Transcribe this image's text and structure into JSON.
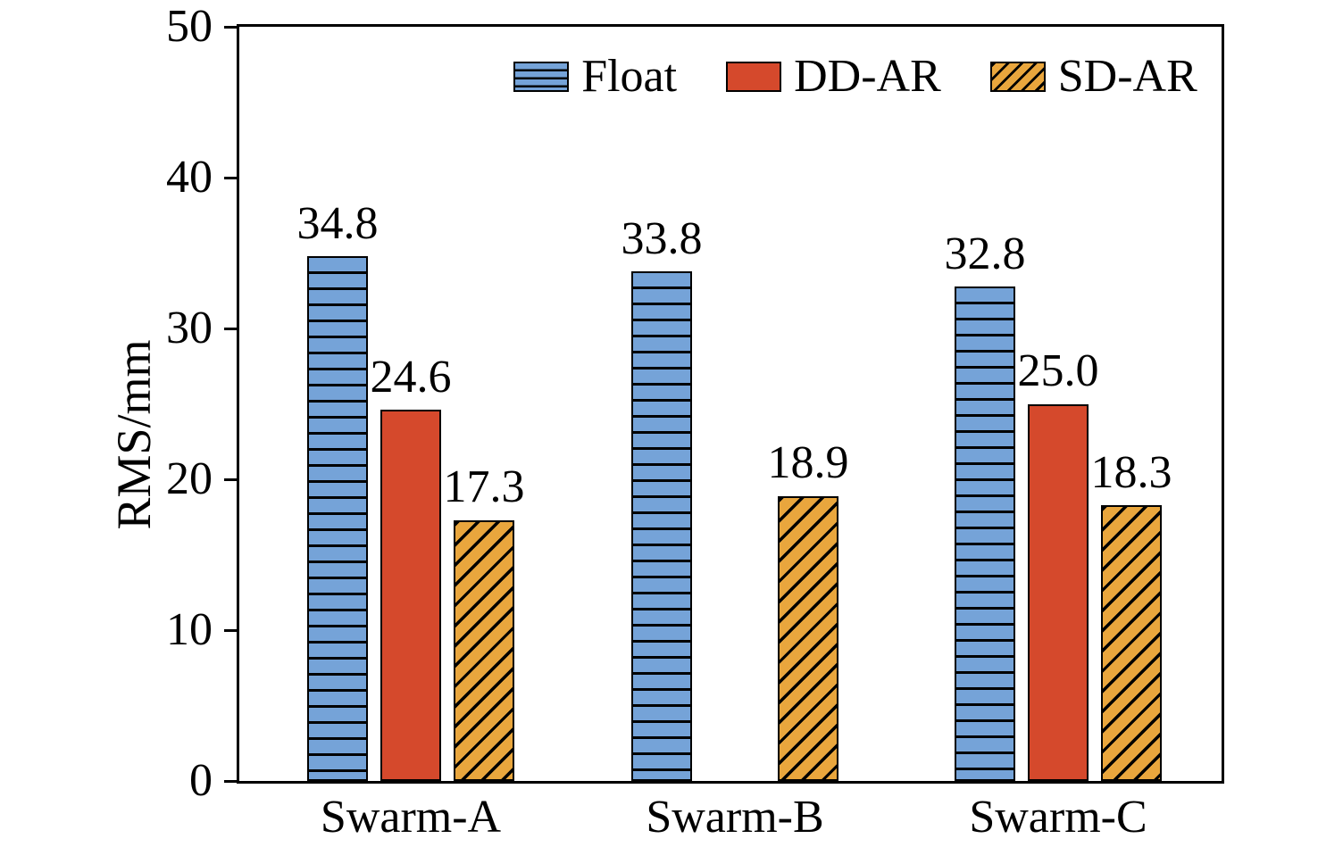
{
  "figure": {
    "background": "#ffffff"
  },
  "chart_data": {
    "type": "bar",
    "title": "",
    "ylabel": "RMS/mm",
    "xlabel": "",
    "ylim": [
      0,
      50
    ],
    "yticks": [
      0,
      10,
      20,
      30,
      40,
      50
    ],
    "categories": [
      "Swarm-A",
      "Swarm-B",
      "Swarm-C"
    ],
    "series": [
      {
        "name": "Float",
        "color": "#75A3D8",
        "hatch": "horizontal",
        "values": [
          34.8,
          33.8,
          32.8
        ]
      },
      {
        "name": "DD-AR",
        "color": "#D5492C",
        "hatch": "none",
        "values": [
          24.6,
          null,
          25.0
        ]
      },
      {
        "name": "SD-AR",
        "color": "#E9A63D",
        "hatch": "diagonal",
        "values": [
          17.3,
          18.9,
          18.3
        ]
      }
    ],
    "edge_color": "#000000",
    "legend_position": "top-center-inside",
    "grid": false,
    "value_labels": true
  }
}
